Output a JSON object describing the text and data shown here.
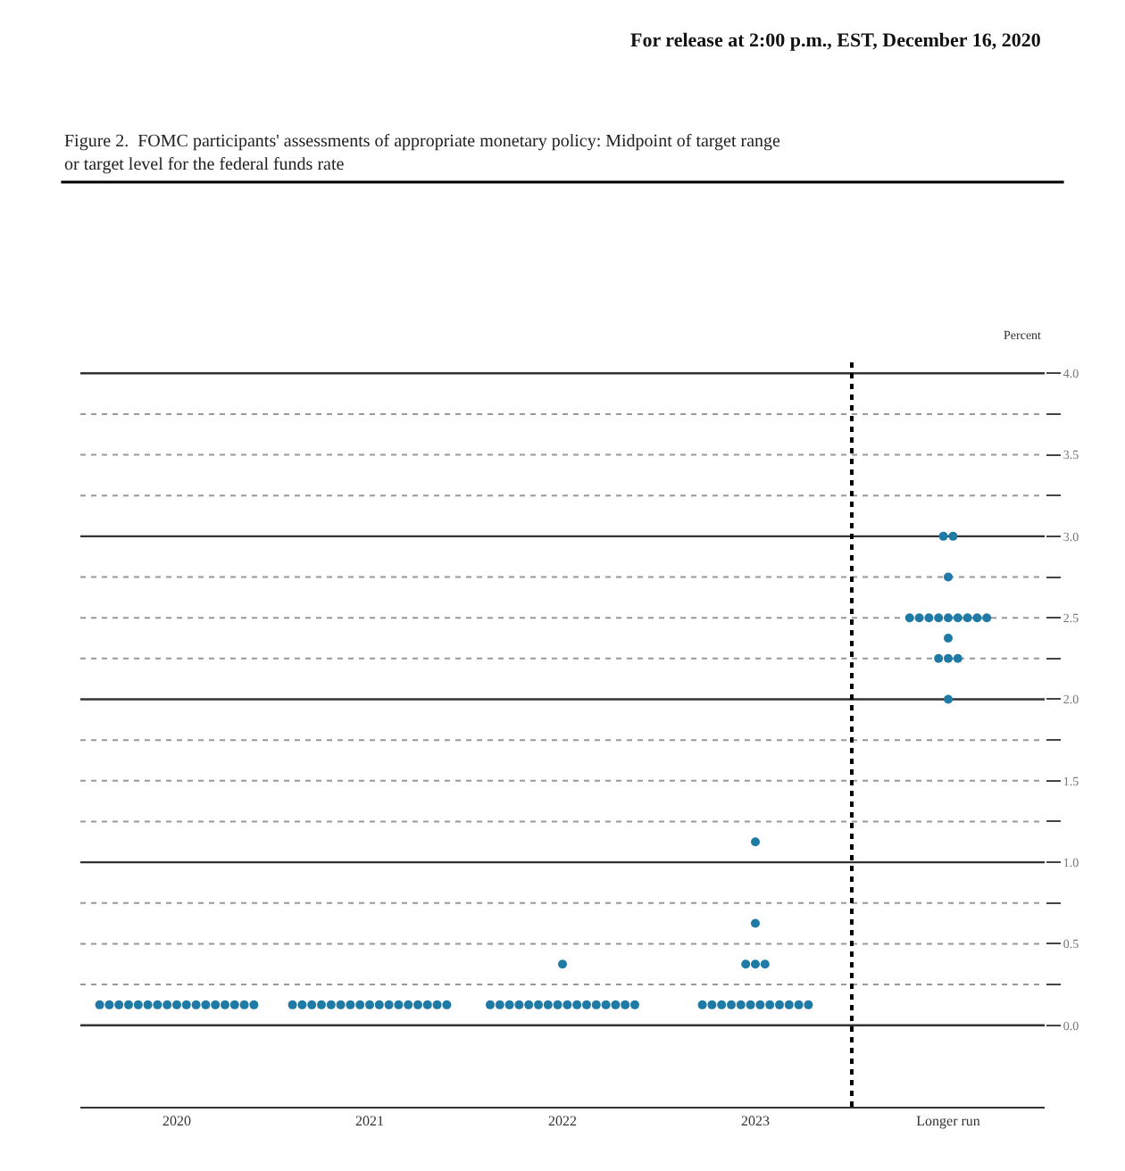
{
  "chart_data": {
    "type": "scatter",
    "title": "Figure 2.  FOMC participants' assessments of appropriate monetary policy: Midpoint of target range or target level for the federal funds rate",
    "annotations": [
      "For release at 2:00 p.m., EST, December 16, 2020"
    ],
    "ylabel": "Percent",
    "marker": "circle",
    "grid": "y",
    "xlim": [
      2019.5,
      2024.5
    ],
    "xticks": [
      2020,
      2021,
      2022,
      2023,
      {
        "value": 2024,
        "label": "Longer run"
      }
    ],
    "ylim": [
      -0.5,
      4.1
    ],
    "yticks": [
      {
        "value": 0,
        "label": "0.0"
      },
      {
        "value": 0.25,
        "label": null
      },
      0.5,
      {
        "value": 0.75,
        "label": null
      },
      {
        "value": 1,
        "label": "1.0"
      },
      {
        "value": 1.25,
        "label": null
      },
      1.5,
      {
        "value": 1.75,
        "label": null
      },
      {
        "value": 2,
        "label": "2.0"
      },
      {
        "value": 2.25,
        "label": null
      },
      2.5,
      {
        "value": 2.75,
        "label": null
      },
      {
        "value": 3,
        "label": "3.0"
      },
      {
        "value": 3.25,
        "label": null
      },
      3.5,
      {
        "value": 3.75,
        "label": null
      },
      {
        "value": 4,
        "label": "4.0"
      }
    ],
    "ref_lines": [
      {
        "axis": "x",
        "value": 2023.5,
        "line_style": "dotted",
        "color": "#000000"
      }
    ],
    "series": [
      {
        "color": "#1f7ba5",
        "x": [
          2019.6,
          2019.65,
          2019.7,
          2019.75,
          2019.8,
          2019.85,
          2019.9,
          2019.95,
          2020,
          2020.05,
          2020.1,
          2020.15,
          2020.2,
          2020.25,
          2020.3,
          2020.35,
          2020.4
        ],
        "values": [
          0.125,
          0.125,
          0.125,
          0.125,
          0.125,
          0.125,
          0.125,
          0.125,
          0.125,
          0.125,
          0.125,
          0.125,
          0.125,
          0.125,
          0.125,
          0.125,
          0.125
        ]
      },
      {
        "color": "#1f7ba5",
        "x": [
          2020.6,
          2020.65,
          2020.7,
          2020.75,
          2020.8,
          2020.85,
          2020.9,
          2020.95,
          2021,
          2021.05,
          2021.1,
          2021.15,
          2021.2,
          2021.25,
          2021.3,
          2021.35,
          2021.4
        ],
        "values": [
          0.125,
          0.125,
          0.125,
          0.125,
          0.125,
          0.125,
          0.125,
          0.125,
          0.125,
          0.125,
          0.125,
          0.125,
          0.125,
          0.125,
          0.125,
          0.125,
          0.125
        ]
      },
      {
        "color": "#1f7ba5",
        "x": [
          2021.625,
          2021.675,
          2021.725,
          2021.775,
          2021.825,
          2021.875,
          2021.925,
          2021.975,
          2022.025,
          2022.075,
          2022.125,
          2022.175,
          2022.225,
          2022.275,
          2022.325,
          2022.375,
          2022
        ],
        "values": [
          0.125,
          0.125,
          0.125,
          0.125,
          0.125,
          0.125,
          0.125,
          0.125,
          0.125,
          0.125,
          0.125,
          0.125,
          0.125,
          0.125,
          0.125,
          0.125,
          0.375
        ]
      },
      {
        "color": "#1f7ba5",
        "x": [
          2022.725,
          2022.775,
          2022.825,
          2022.875,
          2022.925,
          2022.975,
          2023.025,
          2023.075,
          2023.125,
          2023.175,
          2023.225,
          2023.275,
          2022.95,
          2023,
          2023.05,
          2023,
          2023
        ],
        "values": [
          0.125,
          0.125,
          0.125,
          0.125,
          0.125,
          0.125,
          0.125,
          0.125,
          0.125,
          0.125,
          0.125,
          0.125,
          0.375,
          0.375,
          0.375,
          0.625,
          1.125
        ]
      },
      {
        "color": "#1f7ba5",
        "x": [
          2024,
          2023.95,
          2024,
          2024.05,
          2024,
          2023.8,
          2023.85,
          2023.9,
          2023.95,
          2024,
          2024.05,
          2024.1,
          2024.15,
          2024.2,
          2024,
          2023.975,
          2024.025
        ],
        "values": [
          2.0,
          2.25,
          2.25,
          2.25,
          2.375,
          2.5,
          2.5,
          2.5,
          2.5,
          2.5,
          2.5,
          2.5,
          2.5,
          2.5,
          2.75,
          3.0,
          3.0
        ]
      }
    ]
  }
}
